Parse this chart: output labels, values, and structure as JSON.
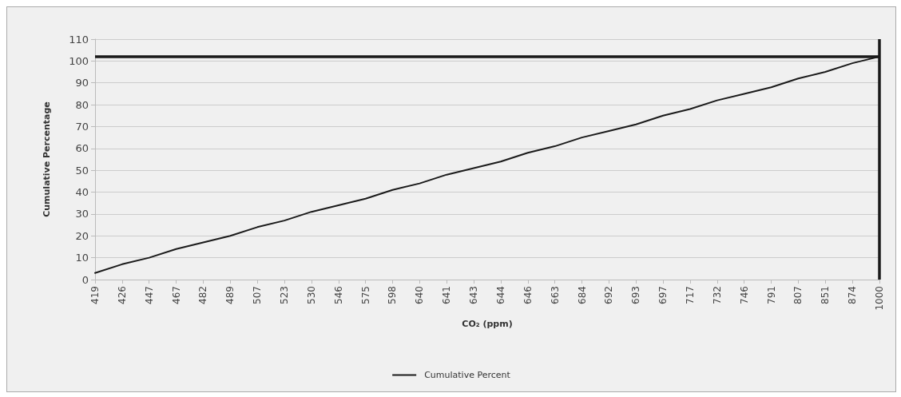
{
  "chart_data": {
    "type": "line",
    "xlabel": "CO₂ (ppm)",
    "ylabel": "Cumulative Percentage",
    "categories": [
      "419",
      "426",
      "447",
      "467",
      "482",
      "489",
      "507",
      "523",
      "530",
      "546",
      "575",
      "598",
      "640",
      "641",
      "643",
      "644",
      "646",
      "663",
      "684",
      "692",
      "693",
      "697",
      "717",
      "732",
      "746",
      "791",
      "807",
      "851",
      "874",
      "1000"
    ],
    "series": [
      {
        "name": "Cumulative Percent",
        "color": "#1a1a1a",
        "values": [
          3,
          7,
          10,
          14,
          17,
          20,
          24,
          27,
          31,
          34,
          37,
          41,
          44,
          48,
          51,
          54,
          58,
          61,
          65,
          68,
          71,
          75,
          78,
          82,
          85,
          88,
          92,
          95,
          99,
          102
        ]
      }
    ],
    "ylim": [
      0,
      110
    ],
    "yticks": [
      0,
      10,
      20,
      30,
      40,
      50,
      60,
      70,
      80,
      90,
      100,
      110
    ],
    "grid": "y",
    "legend": "bottom",
    "marker": "none",
    "line_style": "solid",
    "ref_lines": [
      {
        "axis": "y",
        "value": 102,
        "color": "#1a1a1a"
      },
      {
        "axis": "x",
        "value": "1000",
        "color": "#1a1a1a"
      }
    ]
  }
}
